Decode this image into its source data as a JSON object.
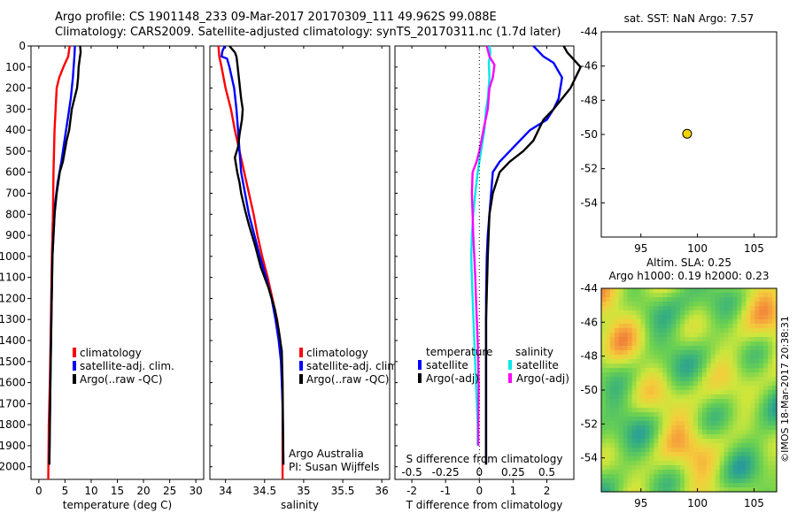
{
  "header": {
    "line1": "Argo profile: CS 1901148_233 09-Mar-2017 20170309_111 49.962S 99.088E",
    "line2": "Climatology: CARS2009. Satellite-adjusted climatology: synTS_20170311.nc (1.7d later)"
  },
  "colors": {
    "climatology": "#ff0000",
    "satellite_adj": "#0000ff",
    "argo": "#000000",
    "salinity_satellite": "#00e8e8",
    "salinity_argo": "#ff00ff",
    "float_marker": "#f2d200"
  },
  "chart_data": [
    {
      "id": "temperature",
      "type": "line",
      "xlabel": "temperature (deg C)",
      "ylabel": "",
      "xlim": [
        -1.5,
        31.5
      ],
      "ylim": [
        2060,
        0
      ],
      "xticks": [
        0,
        5,
        10,
        15,
        20,
        25,
        30
      ],
      "yticks": [
        0,
        100,
        200,
        300,
        400,
        500,
        600,
        700,
        800,
        900,
        1000,
        1100,
        1200,
        1300,
        1400,
        1500,
        1600,
        1700,
        1800,
        1900,
        2000
      ],
      "legend": [
        "climatology",
        "satellite-adj. clim.",
        "Argo(..raw -QC)"
      ],
      "series": [
        {
          "name": "climatology",
          "color": "#ff0000",
          "points": [
            [
              5.9,
              0
            ],
            [
              5.6,
              50
            ],
            [
              4.7,
              100
            ],
            [
              3.9,
              150
            ],
            [
              3.4,
              200
            ],
            [
              3.2,
              300
            ],
            [
              3.0,
              400
            ],
            [
              2.9,
              500
            ],
            [
              2.8,
              600
            ],
            [
              2.7,
              800
            ],
            [
              2.5,
              1000
            ],
            [
              2.3,
              1300
            ],
            [
              2.1,
              1600
            ],
            [
              1.9,
              1800
            ],
            [
              1.8,
              2060
            ]
          ]
        },
        {
          "name": "satellite-adj. clim.",
          "color": "#0000ff",
          "points": [
            [
              6.9,
              0
            ],
            [
              6.8,
              50
            ],
            [
              6.5,
              150
            ],
            [
              6.1,
              250
            ],
            [
              5.5,
              350
            ],
            [
              4.9,
              450
            ],
            [
              4.3,
              550
            ],
            [
              3.6,
              650
            ],
            [
              3.1,
              750
            ],
            [
              2.8,
              900
            ],
            [
              2.6,
              1000
            ],
            [
              2.4,
              1300
            ],
            [
              2.2,
              1600
            ],
            [
              2.1,
              1800
            ],
            [
              2.0,
              1990
            ]
          ]
        },
        {
          "name": "Argo(..raw -QC)",
          "color": "#000000",
          "points": [
            [
              7.9,
              0
            ],
            [
              8.0,
              30
            ],
            [
              7.8,
              60
            ],
            [
              7.6,
              100
            ],
            [
              7.5,
              150
            ],
            [
              7.3,
              200
            ],
            [
              6.8,
              250
            ],
            [
              6.3,
              300
            ],
            [
              5.8,
              400
            ],
            [
              5.3,
              450
            ],
            [
              4.6,
              550
            ],
            [
              4.0,
              600
            ],
            [
              3.4,
              700
            ],
            [
              3.0,
              800
            ],
            [
              2.8,
              900
            ],
            [
              2.6,
              1000
            ],
            [
              2.4,
              1300
            ],
            [
              2.2,
              1600
            ],
            [
              2.1,
              1800
            ],
            [
              2.0,
              1990
            ]
          ]
        }
      ]
    },
    {
      "id": "salinity",
      "type": "line",
      "xlabel": "salinity",
      "ylabel": "",
      "xlim": [
        33.8,
        36.1
      ],
      "ylim": [
        2060,
        0
      ],
      "xticks": [
        34,
        34.5,
        35,
        35.5,
        36
      ],
      "legend": [
        "climatology",
        "satellite-adj. clim.",
        "Argo(..raw -QC)"
      ],
      "annotation": [
        "Argo Australia",
        "PI: Susan Wijffels"
      ],
      "series": [
        {
          "name": "climatology",
          "color": "#ff0000",
          "points": [
            [
              33.91,
              0
            ],
            [
              33.92,
              50
            ],
            [
              33.95,
              100
            ],
            [
              34.0,
              200
            ],
            [
              34.07,
              300
            ],
            [
              34.12,
              400
            ],
            [
              34.18,
              500
            ],
            [
              34.24,
              600
            ],
            [
              34.3,
              700
            ],
            [
              34.36,
              800
            ],
            [
              34.41,
              900
            ],
            [
              34.47,
              1000
            ],
            [
              34.54,
              1100
            ],
            [
              34.6,
              1200
            ],
            [
              34.66,
              1300
            ],
            [
              34.7,
              1400
            ],
            [
              34.72,
              1500
            ],
            [
              34.73,
              1700
            ],
            [
              34.73,
              2060
            ]
          ]
        },
        {
          "name": "satellite-adj. clim.",
          "color": "#0000ff",
          "points": [
            [
              33.99,
              0
            ],
            [
              33.96,
              25
            ],
            [
              33.95,
              50
            ],
            [
              34.02,
              60
            ],
            [
              34.05,
              100
            ],
            [
              34.11,
              200
            ],
            [
              34.14,
              300
            ],
            [
              34.16,
              400
            ],
            [
              34.18,
              500
            ],
            [
              34.2,
              600
            ],
            [
              34.25,
              700
            ],
            [
              34.3,
              800
            ],
            [
              34.37,
              900
            ],
            [
              34.44,
              1000
            ],
            [
              34.52,
              1100
            ],
            [
              34.59,
              1200
            ],
            [
              34.64,
              1300
            ],
            [
              34.68,
              1400
            ],
            [
              34.71,
              1500
            ],
            [
              34.73,
              1700
            ],
            [
              34.74,
              1990
            ]
          ]
        },
        {
          "name": "Argo(..raw -QC)",
          "color": "#000000",
          "points": [
            [
              34.05,
              0
            ],
            [
              34.12,
              30
            ],
            [
              34.14,
              50
            ],
            [
              34.15,
              80
            ],
            [
              34.17,
              150
            ],
            [
              34.2,
              250
            ],
            [
              34.22,
              300
            ],
            [
              34.21,
              350
            ],
            [
              34.18,
              420
            ],
            [
              34.16,
              480
            ],
            [
              34.12,
              530
            ],
            [
              34.15,
              600
            ],
            [
              34.18,
              650
            ],
            [
              34.2,
              700
            ],
            [
              34.25,
              780
            ],
            [
              34.3,
              850
            ],
            [
              34.38,
              950
            ],
            [
              34.45,
              1050
            ],
            [
              34.55,
              1150
            ],
            [
              34.63,
              1250
            ],
            [
              34.68,
              1350
            ],
            [
              34.72,
              1450
            ],
            [
              34.73,
              1600
            ],
            [
              34.74,
              1990
            ]
          ]
        }
      ]
    },
    {
      "id": "differences",
      "type": "line",
      "xlabel": "T difference from climatology",
      "top_xlabel": "S difference from climatology",
      "xlim": [
        -2.5,
        2.8
      ],
      "ylim": [
        2060,
        0
      ],
      "xticks": [
        -2,
        -1,
        0,
        1,
        2
      ],
      "top_xticks": [
        -0.5,
        -0.25,
        0,
        0.25,
        0.5
      ],
      "top_xtick_labels": [
        "-0.5",
        "-0.25",
        "0",
        "0.25",
        "0.5"
      ],
      "legend_headers": [
        "temperature",
        "salinity"
      ],
      "legend": [
        "satellite",
        "Argo(-adj)",
        "satellite",
        "Argo(-adj)"
      ],
      "series": [
        {
          "name": "temperature satellite",
          "color": "#0000ff",
          "points": [
            [
              1.6,
              0
            ],
            [
              1.9,
              50
            ],
            [
              2.2,
              80
            ],
            [
              2.45,
              150
            ],
            [
              2.35,
              250
            ],
            [
              2.2,
              300
            ],
            [
              2.0,
              350
            ],
            [
              1.5,
              400
            ],
            [
              1.2,
              450
            ],
            [
              0.9,
              500
            ],
            [
              0.6,
              550
            ],
            [
              0.4,
              600
            ],
            [
              0.35,
              700
            ],
            [
              0.3,
              800
            ],
            [
              0.25,
              900
            ],
            [
              0.22,
              1000
            ],
            [
              0.2,
              1200
            ],
            [
              0.2,
              1500
            ],
            [
              0.2,
              1800
            ],
            [
              0.2,
              1990
            ]
          ]
        },
        {
          "name": "temperature Argo(-adj)",
          "color": "#000000",
          "points": [
            [
              2.5,
              0
            ],
            [
              2.6,
              30
            ],
            [
              3.0,
              100
            ],
            [
              2.7,
              200
            ],
            [
              2.2,
              300
            ],
            [
              1.9,
              350
            ],
            [
              1.6,
              450
            ],
            [
              1.3,
              500
            ],
            [
              0.9,
              550
            ],
            [
              0.6,
              600
            ],
            [
              0.4,
              700
            ],
            [
              0.3,
              800
            ],
            [
              0.25,
              1000
            ],
            [
              0.2,
              1300
            ],
            [
              0.2,
              1600
            ],
            [
              0.2,
              1990
            ]
          ]
        },
        {
          "name": "salinity satellite",
          "color": "#00e8e8",
          "points": [
            [
              0.3,
              0
            ],
            [
              0.33,
              30
            ],
            [
              0.28,
              80
            ],
            [
              0.3,
              150
            ],
            [
              0.25,
              250
            ],
            [
              0.2,
              300
            ],
            [
              0.15,
              400
            ],
            [
              0.05,
              500
            ],
            [
              -0.05,
              600
            ],
            [
              -0.12,
              700
            ],
            [
              -0.18,
              800
            ],
            [
              -0.22,
              900
            ],
            [
              -0.24,
              1000
            ],
            [
              -0.2,
              1200
            ],
            [
              -0.15,
              1400
            ],
            [
              -0.1,
              1600
            ],
            [
              -0.05,
              1800
            ],
            [
              -0.05,
              1900
            ]
          ]
        },
        {
          "name": "salinity Argo(-adj)",
          "color": "#ff00ff",
          "points": [
            [
              0.22,
              0
            ],
            [
              0.3,
              50
            ],
            [
              0.45,
              90
            ],
            [
              0.4,
              150
            ],
            [
              0.3,
              200
            ],
            [
              0.25,
              300
            ],
            [
              0.12,
              400
            ],
            [
              0.0,
              500
            ],
            [
              -0.08,
              550
            ],
            [
              -0.2,
              600
            ],
            [
              -0.22,
              700
            ],
            [
              -0.2,
              800
            ],
            [
              -0.18,
              900
            ],
            [
              -0.15,
              1000
            ],
            [
              -0.12,
              1100
            ],
            [
              -0.1,
              1200
            ],
            [
              -0.05,
              1400
            ],
            [
              -0.02,
              1600
            ],
            [
              -0.03,
              1800
            ],
            [
              -0.03,
              1900
            ]
          ]
        }
      ]
    },
    {
      "id": "sst_map",
      "type": "scatter",
      "title": "sat. SST: NaN Argo: 7.57",
      "xlim": [
        91.5,
        107
      ],
      "ylim": [
        -56,
        -44
      ],
      "xticks": [
        95,
        100,
        105
      ],
      "yticks": [
        -44,
        -46,
        -48,
        -50,
        -52,
        -54
      ],
      "points": [
        [
          99.09,
          -49.96
        ]
      ]
    },
    {
      "id": "sla_map",
      "type": "heatmap",
      "title_line1": "Altim. SLA: 0.25",
      "title_line2": "Argo h1000: 0.19 h2000: 0.23",
      "xlim": [
        91.5,
        107
      ],
      "ylim": [
        -56,
        -44
      ],
      "xticks": [
        95,
        100,
        105
      ],
      "yticks": [
        -44,
        -46,
        -48,
        -50,
        -52,
        -54
      ],
      "side_label": "©IMOS 18-Mar-2017 20:38:31"
    }
  ]
}
